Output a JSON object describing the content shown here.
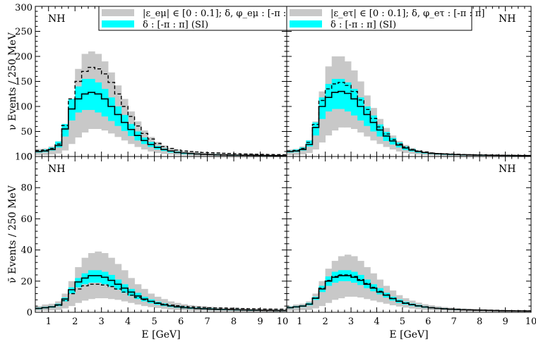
{
  "chart_data": {
    "type": "histogram-band",
    "x_bin_width_gev": 0.25,
    "x_range": [
      0.5,
      10
    ],
    "xlabel": "E [GeV]",
    "xticks": [
      "1",
      "2",
      "3",
      "4",
      "5",
      "6",
      "7",
      "8",
      "9",
      "10"
    ],
    "colors": {
      "nsi_band": "#c8c8c8",
      "si_band": "#00ffff",
      "line": "#000000"
    },
    "legends": {
      "emu": {
        "nsi": "|ε_eμ| ∈ [0 : 0.1]; δ, φ_eμ : [-π : π]",
        "si": "δ : [-π : π] (SI)"
      },
      "etau": {
        "nsi": "|ε_eτ| ∈ [0 : 0.1]; δ, φ_eτ : [-π : π]",
        "si": "δ : [-π : π] (SI)"
      }
    },
    "panels": [
      {
        "id": "nu-emu",
        "label": "NH",
        "ylabel": "ν Events / 250 MeV",
        "ylim": [
          0,
          300
        ],
        "yticks": [
          "0",
          "50",
          "100",
          "150",
          "200",
          "250",
          "300"
        ],
        "legend": "emu",
        "nsi_low": [
          3,
          3,
          4,
          6,
          12,
          25,
          38,
          48,
          55,
          55,
          52,
          46,
          39,
          32,
          25,
          19,
          14,
          10,
          7,
          5,
          4,
          3,
          2.5,
          2,
          1.5,
          1.2,
          1,
          1,
          0.8,
          0.7,
          0.6,
          0.5,
          0.5,
          0.4,
          0.4,
          0.3,
          0.3,
          0.2
        ],
        "nsi_high": [
          15,
          16,
          20,
          30,
          60,
          115,
          175,
          205,
          210,
          205,
          190,
          168,
          142,
          115,
          90,
          70,
          52,
          39,
          29,
          22,
          17,
          14,
          11,
          9,
          8,
          7,
          6,
          6,
          5,
          5,
          4,
          4,
          4,
          3.5,
          3.5,
          3,
          3,
          3
        ],
        "si_low": [
          8,
          9,
          12,
          18,
          40,
          72,
          88,
          93,
          93,
          88,
          80,
          71,
          61,
          51,
          41,
          32,
          25,
          19,
          14,
          11,
          8,
          6.5,
          5,
          4.5,
          4,
          3.5,
          3,
          2.5,
          2.2,
          2,
          1.8,
          1.6,
          1.5,
          1.4,
          1.3,
          1.2,
          1.1,
          1
        ],
        "si_high": [
          12,
          14,
          18,
          30,
          65,
          115,
          140,
          155,
          155,
          148,
          135,
          118,
          100,
          83,
          65,
          50,
          38,
          29,
          21,
          16,
          12,
          10,
          8,
          7,
          6,
          5.5,
          5,
          4.5,
          4,
          3.8,
          3.5,
          3.2,
          3,
          2.8,
          2.6,
          2.5,
          2.4,
          2.2
        ],
        "solid": [
          10,
          11,
          14,
          22,
          55,
          95,
          115,
          125,
          128,
          125,
          115,
          100,
          84,
          68,
          54,
          42,
          32,
          24,
          18,
          14,
          11,
          8,
          7,
          6,
          5,
          4.5,
          4,
          3.5,
          3.2,
          3,
          2.8,
          2.6,
          2.4,
          2.2,
          2.1,
          2,
          1.9,
          1.8
        ],
        "dashed": [
          12,
          13,
          16,
          25,
          62,
          115,
          150,
          170,
          178,
          175,
          165,
          148,
          125,
          100,
          80,
          61,
          46,
          35,
          26,
          20,
          16,
          13,
          11,
          10,
          9,
          8,
          7.5,
          7,
          6.5,
          6,
          5.5,
          5,
          4.8,
          4.5,
          4.2,
          4,
          3.8,
          3.5
        ]
      },
      {
        "id": "nu-etau",
        "label": "NH",
        "ylabel": "",
        "ylim": [
          0,
          300
        ],
        "yticks": [],
        "legend": "etau",
        "nsi_low": [
          3,
          3,
          4,
          7,
          14,
          28,
          42,
          52,
          58,
          58,
          55,
          48,
          40,
          32,
          25,
          19,
          14,
          10,
          7,
          5,
          4,
          3,
          2.5,
          2,
          1.5,
          1.2,
          1,
          0.9,
          0.8,
          0.7,
          0.6,
          0.5,
          0.5,
          0.4,
          0.4,
          0.3,
          0.3,
          0.2
        ],
        "nsi_high": [
          14,
          15,
          20,
          32,
          70,
          130,
          180,
          200,
          200,
          190,
          172,
          150,
          122,
          97,
          75,
          57,
          42,
          31,
          23,
          17,
          13,
          10,
          8,
          7,
          6,
          5.5,
          5,
          4.5,
          4,
          3.8,
          3.5,
          3.2,
          3,
          2.8,
          2.6,
          2.5,
          2.4,
          2.2
        ],
        "si_low": [
          8,
          9,
          12,
          20,
          42,
          75,
          90,
          95,
          95,
          90,
          82,
          72,
          61,
          50,
          40,
          31,
          24,
          18,
          13,
          10,
          7.5,
          6,
          5,
          4,
          3.5,
          3,
          2.7,
          2.4,
          2.2,
          2,
          1.8,
          1.6,
          1.5,
          1.4,
          1.3,
          1.2,
          1.1,
          1
        ],
        "si_high": [
          12,
          14,
          18,
          32,
          68,
          118,
          145,
          155,
          155,
          148,
          135,
          118,
          100,
          82,
          64,
          49,
          37,
          28,
          20,
          15,
          11,
          9,
          7,
          6,
          5.5,
          5,
          4.5,
          4,
          3.7,
          3.4,
          3.2,
          3,
          2.8,
          2.6,
          2.4,
          2.3,
          2.2,
          2
        ],
        "solid": [
          10,
          11,
          14,
          24,
          58,
          100,
          118,
          128,
          130,
          126,
          115,
          100,
          84,
          68,
          53,
          41,
          31,
          23,
          17,
          13,
          10,
          8,
          6.5,
          5.5,
          5,
          4.5,
          4,
          3.5,
          3.2,
          3,
          2.8,
          2.6,
          2.4,
          2.2,
          2.1,
          2,
          1.9,
          1.8
        ],
        "dashed": [
          11,
          12,
          16,
          28,
          64,
          112,
          135,
          145,
          148,
          142,
          130,
          113,
          94,
          76,
          59,
          45,
          34,
          25,
          19,
          14,
          11,
          9,
          7,
          6,
          5.5,
          5,
          4.5,
          4,
          3.7,
          3.4,
          3.2,
          3,
          2.8,
          2.6,
          2.4,
          2.3,
          2.2,
          2
        ]
      },
      {
        "id": "nubar-emu",
        "label": "NH",
        "ylabel": "ν̄  Events / 250 MeV",
        "ylim": [
          0,
          100
        ],
        "yticks": [
          "0",
          "20",
          "40",
          "60",
          "80",
          "100"
        ],
        "legend": null,
        "nsi_low": [
          1,
          1,
          1.2,
          1.5,
          2.5,
          4,
          6,
          7.5,
          8.5,
          9,
          9,
          8.5,
          8,
          7,
          6,
          5,
          4,
          3.3,
          2.7,
          2.2,
          1.8,
          1.5,
          1.2,
          1,
          0.9,
          0.8,
          0.7,
          0.6,
          0.5,
          0.5,
          0.4,
          0.4,
          0.3,
          0.3,
          0.3,
          0.2,
          0.2,
          0.2
        ],
        "nsi_high": [
          4,
          5,
          5.5,
          7,
          12,
          20,
          29,
          35,
          38,
          39,
          38,
          35,
          31,
          27,
          22,
          18,
          15,
          12,
          10,
          8.5,
          7,
          6,
          5.2,
          4.6,
          4.2,
          3.8,
          3.5,
          3.2,
          3,
          2.8,
          2.6,
          2.5,
          2.4,
          2.3,
          2.2,
          2.1,
          2,
          2
        ],
        "si_low": [
          2,
          2.5,
          3,
          4,
          7,
          12,
          16,
          18,
          19,
          19,
          18,
          16.5,
          14.5,
          12.5,
          10.5,
          8.5,
          7,
          5.8,
          4.8,
          4,
          3.4,
          2.9,
          2.5,
          2.2,
          2,
          1.8,
          1.6,
          1.5,
          1.4,
          1.3,
          1.2,
          1.1,
          1,
          1,
          0.9,
          0.9,
          0.8,
          0.8
        ],
        "si_high": [
          3,
          3.5,
          4,
          5.5,
          9.5,
          16,
          22,
          25,
          27,
          27,
          26,
          24,
          21,
          18,
          15,
          12.5,
          10,
          8.3,
          6.8,
          5.7,
          4.8,
          4.1,
          3.6,
          3.2,
          2.9,
          2.7,
          2.5,
          2.3,
          2.1,
          2,
          1.9,
          1.8,
          1.7,
          1.6,
          1.5,
          1.5,
          1.4,
          1.4
        ],
        "solid": [
          2.5,
          3,
          3.5,
          4.8,
          8.5,
          14.5,
          19.5,
          22,
          23.5,
          23.5,
          22.5,
          20.5,
          18,
          15.5,
          13,
          10.5,
          8.5,
          7,
          5.8,
          4.8,
          4.1,
          3.5,
          3,
          2.7,
          2.4,
          2.2,
          2,
          1.9,
          1.8,
          1.7,
          1.6,
          1.5,
          1.4,
          1.3,
          1.2,
          1.2,
          1.1,
          1.1
        ],
        "dashed": [
          2.5,
          3,
          3.5,
          4.5,
          7.5,
          12,
          15,
          17,
          18,
          18,
          17.5,
          16.5,
          15,
          13,
          11,
          9.5,
          8,
          7,
          6,
          5.2,
          4.6,
          4.2,
          3.8,
          3.5,
          3.3,
          3.1,
          2.9,
          2.8,
          2.7,
          2.6,
          2.5,
          2.4,
          2.3,
          2.2,
          2.1,
          2.1,
          2,
          2
        ]
      },
      {
        "id": "nubar-etau",
        "label": "NH",
        "ylabel": "",
        "ylim": [
          0,
          100
        ],
        "yticks": [],
        "legend": null,
        "nsi_low": [
          1,
          1,
          1.2,
          1.5,
          2.5,
          4,
          6,
          8,
          9,
          10,
          10,
          9.5,
          8.5,
          7.5,
          6.5,
          5.5,
          4.5,
          3.7,
          3,
          2.4,
          2,
          1.6,
          1.3,
          1.1,
          1,
          0.9,
          0.8,
          0.7,
          0.6,
          0.5,
          0.5,
          0.4,
          0.4,
          0.3,
          0.3,
          0.3,
          0.2,
          0.2
        ],
        "nsi_high": [
          4,
          5,
          5.5,
          7,
          12,
          20,
          28,
          33,
          36,
          37,
          36,
          33,
          29,
          25,
          21,
          17,
          14,
          11,
          9,
          7.5,
          6.2,
          5.2,
          4.5,
          3.9,
          3.4,
          3,
          2.7,
          2.5,
          2.3,
          2.1,
          1.9,
          1.8,
          1.7,
          1.6,
          1.5,
          1.4,
          1.3,
          1.2
        ],
        "si_low": [
          2.5,
          3,
          3.5,
          4.5,
          8,
          13,
          17,
          19,
          20,
          20,
          19,
          17.5,
          15.5,
          13.5,
          11.5,
          9.5,
          7.5,
          6,
          5,
          4.2,
          3.5,
          2.9,
          2.5,
          2.2,
          1.9,
          1.7,
          1.5,
          1.4,
          1.3,
          1.2,
          1.1,
          1,
          0.9,
          0.9,
          0.8,
          0.8,
          0.7,
          0.7
        ],
        "si_high": [
          3.5,
          4,
          4.5,
          6,
          10,
          17,
          23,
          26,
          27,
          27,
          26,
          24,
          21,
          18,
          15.5,
          12.5,
          10,
          8.2,
          6.7,
          5.6,
          4.7,
          3.9,
          3.3,
          2.9,
          2.6,
          2.3,
          2.1,
          1.9,
          1.7,
          1.6,
          1.5,
          1.4,
          1.3,
          1.2,
          1.1,
          1.1,
          1,
          1
        ],
        "solid": [
          3,
          3.5,
          4,
          5.2,
          9,
          15,
          20,
          22.5,
          23.5,
          23.5,
          22.5,
          20.5,
          18,
          15.5,
          13,
          11,
          8.8,
          7.1,
          5.8,
          4.9,
          4.1,
          3.4,
          2.9,
          2.5,
          2.2,
          2,
          1.8,
          1.6,
          1.5,
          1.4,
          1.3,
          1.2,
          1.1,
          1,
          1,
          0.9,
          0.9,
          0.8
        ],
        "dashed": [
          3,
          3.5,
          4,
          5.3,
          9.2,
          15.5,
          20.5,
          23,
          24,
          24,
          23,
          21,
          18.5,
          16,
          13.5,
          11.2,
          9,
          7.3,
          6,
          5,
          4.2,
          3.5,
          3,
          2.6,
          2.3,
          2.1,
          1.9,
          1.7,
          1.6,
          1.5,
          1.4,
          1.3,
          1.2,
          1.1,
          1,
          1,
          0.9,
          0.9
        ]
      }
    ]
  }
}
